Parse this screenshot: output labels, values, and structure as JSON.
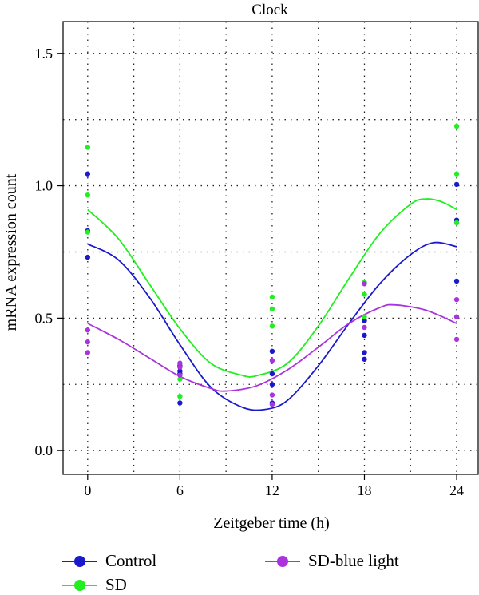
{
  "chart_data": {
    "type": "scatter",
    "title": "Clock",
    "xlabel": "Zeitgeber time (h)",
    "ylabel": "mRNA expression count",
    "xlim": [
      -1.6,
      25.4
    ],
    "ylim": [
      -0.09,
      1.62
    ],
    "x_ticks": [
      0,
      6,
      12,
      18,
      24
    ],
    "x_tick_labels": [
      "0",
      "6",
      "12",
      "18",
      "24"
    ],
    "y_ticks": [
      0.0,
      0.5,
      1.0,
      1.5
    ],
    "y_tick_labels": [
      "0.0",
      "0.5",
      "1.0",
      "1.5"
    ],
    "grid": true,
    "legend_position": "bottom",
    "series": [
      {
        "name": "Control",
        "color": "#1a1acc",
        "points": [
          [
            0,
            1.045
          ],
          [
            0,
            0.83
          ],
          [
            0,
            0.73
          ],
          [
            6,
            0.32
          ],
          [
            6,
            0.3
          ],
          [
            6,
            0.29
          ],
          [
            6,
            0.18
          ],
          [
            12,
            0.375
          ],
          [
            12,
            0.29
          ],
          [
            12,
            0.25
          ],
          [
            12,
            0.18
          ],
          [
            18,
            0.49
          ],
          [
            18,
            0.435
          ],
          [
            18,
            0.37
          ],
          [
            18,
            0.345
          ],
          [
            24,
            1.005
          ],
          [
            24,
            0.87
          ],
          [
            24,
            0.64
          ]
        ],
        "fit": [
          [
            0,
            0.78
          ],
          [
            2,
            0.72
          ],
          [
            4,
            0.58
          ],
          [
            6,
            0.4
          ],
          [
            8,
            0.24
          ],
          [
            10,
            0.165
          ],
          [
            11.5,
            0.155
          ],
          [
            13,
            0.19
          ],
          [
            15,
            0.32
          ],
          [
            17,
            0.48
          ],
          [
            19,
            0.63
          ],
          [
            21,
            0.74
          ],
          [
            22.5,
            0.785
          ],
          [
            24,
            0.77
          ]
        ]
      },
      {
        "name": "SD",
        "color": "#22ee22",
        "points": [
          [
            0,
            1.145
          ],
          [
            0,
            0.965
          ],
          [
            0,
            0.825
          ],
          [
            6,
            0.27
          ],
          [
            6,
            0.205
          ],
          [
            12,
            0.58
          ],
          [
            12,
            0.535
          ],
          [
            12,
            0.47
          ],
          [
            18,
            0.635
          ],
          [
            18,
            0.59
          ],
          [
            18,
            0.505
          ],
          [
            24,
            1.225
          ],
          [
            24,
            1.045
          ],
          [
            24,
            0.86
          ]
        ],
        "fit": [
          [
            0,
            0.91
          ],
          [
            2,
            0.8
          ],
          [
            4,
            0.63
          ],
          [
            6,
            0.46
          ],
          [
            8,
            0.33
          ],
          [
            10,
            0.285
          ],
          [
            11,
            0.283
          ],
          [
            13,
            0.33
          ],
          [
            15,
            0.47
          ],
          [
            17,
            0.65
          ],
          [
            19,
            0.82
          ],
          [
            21,
            0.93
          ],
          [
            22,
            0.95
          ],
          [
            23,
            0.94
          ],
          [
            24,
            0.91
          ]
        ]
      },
      {
        "name": "SD-blue light",
        "color": "#aa33dd",
        "points": [
          [
            0,
            0.455
          ],
          [
            0,
            0.41
          ],
          [
            0,
            0.37
          ],
          [
            6,
            0.33
          ],
          [
            6,
            0.315
          ],
          [
            6,
            0.285
          ],
          [
            12,
            0.34
          ],
          [
            12,
            0.21
          ],
          [
            12,
            0.175
          ],
          [
            18,
            0.63
          ],
          [
            18,
            0.465
          ],
          [
            24,
            0.57
          ],
          [
            24,
            0.505
          ],
          [
            24,
            0.42
          ]
        ],
        "fit": [
          [
            0,
            0.48
          ],
          [
            2,
            0.42
          ],
          [
            4,
            0.35
          ],
          [
            6,
            0.28
          ],
          [
            8,
            0.235
          ],
          [
            9,
            0.225
          ],
          [
            11,
            0.245
          ],
          [
            13,
            0.305
          ],
          [
            15,
            0.39
          ],
          [
            17,
            0.48
          ],
          [
            19,
            0.54
          ],
          [
            20,
            0.55
          ],
          [
            22,
            0.53
          ],
          [
            24,
            0.48
          ]
        ]
      }
    ]
  }
}
